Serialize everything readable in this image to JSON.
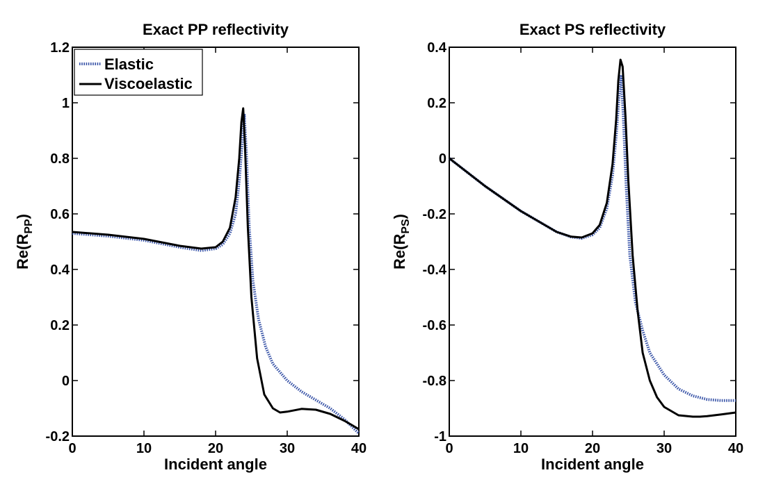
{
  "chart_data": [
    {
      "type": "line",
      "title": "Exact PP reflectivity",
      "xlabel": "Incident angle",
      "ylabel_main": "Re(R",
      "ylabel_sub": "PP",
      "ylabel_close": ")",
      "xlim": [
        0,
        40
      ],
      "ylim": [
        -0.2,
        1.2
      ],
      "xticks": [
        0,
        10,
        20,
        30,
        40
      ],
      "xtick_labels": [
        "0",
        "10",
        "20",
        "30",
        "40"
      ],
      "yticks": [
        -0.2,
        0,
        0.2,
        0.4,
        0.6,
        0.8,
        1,
        1.2
      ],
      "ytick_labels": [
        "-0.2",
        "0",
        "0.2",
        "0.4",
        "0.6",
        "0.8",
        "1",
        "1.2"
      ],
      "grid": false,
      "legend": {
        "placement": "top-left",
        "entries": [
          {
            "label": "Elastic",
            "style": "dotted",
            "color": "#3a55a8"
          },
          {
            "label": "Viscoelastic",
            "style": "solid",
            "color": "#000000"
          }
        ]
      },
      "series": [
        {
          "name": "Elastic",
          "color": "#3a55a8",
          "style": "dotted",
          "x": [
            0,
            5,
            10,
            15,
            18,
            20,
            21,
            22,
            22.8,
            23.3,
            23.7,
            24.0,
            24.3,
            24.7,
            25.2,
            26,
            27,
            28,
            30,
            32,
            34,
            36,
            38,
            40
          ],
          "y": [
            0.53,
            0.52,
            0.505,
            0.48,
            0.468,
            0.475,
            0.49,
            0.53,
            0.6,
            0.72,
            0.85,
            0.96,
            0.82,
            0.55,
            0.36,
            0.22,
            0.12,
            0.06,
            0.0,
            -0.04,
            -0.07,
            -0.1,
            -0.14,
            -0.19
          ]
        },
        {
          "name": "Viscoelastic",
          "color": "#000000",
          "style": "solid",
          "x": [
            0,
            5,
            10,
            15,
            18,
            20,
            21,
            22,
            22.8,
            23.3,
            23.6,
            23.85,
            24.1,
            24.5,
            25,
            25.8,
            26.8,
            28,
            29,
            30,
            32,
            34,
            36,
            38,
            40
          ],
          "y": [
            0.535,
            0.525,
            0.51,
            0.485,
            0.475,
            0.48,
            0.5,
            0.55,
            0.66,
            0.8,
            0.93,
            0.98,
            0.85,
            0.55,
            0.3,
            0.08,
            -0.05,
            -0.1,
            -0.115,
            -0.112,
            -0.102,
            -0.105,
            -0.12,
            -0.145,
            -0.175
          ]
        }
      ]
    },
    {
      "type": "line",
      "title": "Exact PS reflectivity",
      "xlabel": "Incident angle",
      "ylabel_main": "Re(R",
      "ylabel_sub": "PS",
      "ylabel_close": ")",
      "xlim": [
        0,
        40
      ],
      "ylim": [
        -1,
        0.4
      ],
      "xticks": [
        0,
        10,
        20,
        30,
        40
      ],
      "xtick_labels": [
        "0",
        "10",
        "20",
        "30",
        "40"
      ],
      "yticks": [
        -1,
        -0.8,
        -0.6,
        -0.4,
        -0.2,
        0,
        0.2,
        0.4
      ],
      "ytick_labels": [
        "-1",
        "-0.8",
        "-0.6",
        "-0.4",
        "-0.2",
        "0",
        "0.2",
        "0.4"
      ],
      "grid": false,
      "series": [
        {
          "name": "Elastic",
          "color": "#3a55a8",
          "style": "dotted",
          "x": [
            0,
            5,
            10,
            15,
            17,
            18.5,
            20,
            21,
            22,
            22.8,
            23.3,
            23.7,
            24.0,
            24.3,
            24.7,
            25.2,
            26,
            27,
            28,
            30,
            32,
            34,
            36,
            38,
            40
          ],
          "y": [
            0.0,
            -0.1,
            -0.19,
            -0.265,
            -0.283,
            -0.288,
            -0.275,
            -0.25,
            -0.18,
            -0.06,
            0.08,
            0.22,
            0.3,
            0.15,
            -0.1,
            -0.35,
            -0.52,
            -0.62,
            -0.7,
            -0.78,
            -0.83,
            -0.855,
            -0.868,
            -0.872,
            -0.872
          ]
        },
        {
          "name": "Viscoelastic",
          "color": "#000000",
          "style": "solid",
          "x": [
            0,
            5,
            10,
            15,
            17,
            18.5,
            20,
            21,
            22,
            22.8,
            23.3,
            23.6,
            23.9,
            24.2,
            24.6,
            25,
            25.6,
            26.3,
            27,
            28,
            29,
            30,
            32,
            34,
            35,
            36,
            38,
            40
          ],
          "y": [
            0.0,
            -0.1,
            -0.19,
            -0.265,
            -0.282,
            -0.285,
            -0.27,
            -0.24,
            -0.16,
            -0.02,
            0.14,
            0.28,
            0.355,
            0.33,
            0.15,
            -0.08,
            -0.35,
            -0.55,
            -0.7,
            -0.8,
            -0.86,
            -0.895,
            -0.925,
            -0.93,
            -0.93,
            -0.928,
            -0.922,
            -0.915
          ]
        }
      ]
    }
  ]
}
